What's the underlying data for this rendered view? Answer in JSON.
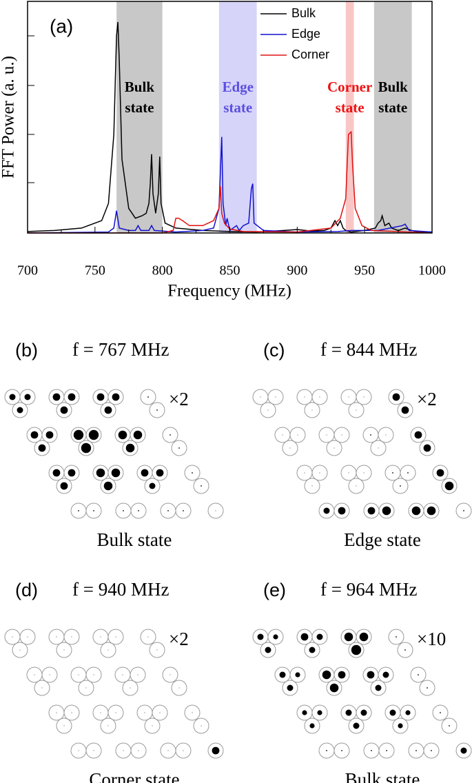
{
  "chart_data": {
    "type": "line",
    "panel_label": "(a)",
    "x_label": "Frequency (MHz)",
    "y_label": "FFT Power (a. u.)",
    "xlim": [
      700,
      1000
    ],
    "xticks": [
      700,
      750,
      800,
      850,
      900,
      950,
      1000
    ],
    "ylim": [
      0,
      4.7
    ],
    "bands": [
      {
        "range": [
          766,
          800
        ],
        "color": "#c8c8c8",
        "label_lines": [
          "Bulk",
          "state"
        ],
        "label_color": "#000000"
      },
      {
        "range": [
          842,
          870
        ],
        "color": "#d6d4f8",
        "label_lines": [
          "Edge",
          "state"
        ],
        "label_color": "#5b4fe0"
      },
      {
        "range": [
          936,
          942
        ],
        "color": "#f9c6c6",
        "label_lines": [
          "Corner",
          "state"
        ],
        "label_color": "#ee1111"
      },
      {
        "range": [
          957,
          985
        ],
        "color": "#c8c8c8",
        "label_lines": [
          "Bulk",
          "state"
        ],
        "label_color": "#000000"
      }
    ],
    "series": [
      {
        "name": "Bulk",
        "color": "#000000",
        "x": [
          700,
          720,
          740,
          755,
          760,
          764,
          766,
          767,
          768,
          770,
          775,
          780,
          785,
          788,
          790,
          791,
          792,
          793,
          795,
          797,
          798,
          799,
          802,
          810,
          830,
          850,
          870,
          890,
          900,
          910,
          920,
          925,
          928,
          930,
          932,
          934,
          936,
          940,
          950,
          958,
          960,
          962,
          963,
          965,
          968,
          970,
          975,
          980,
          985,
          990,
          1000
        ],
        "values": [
          0.03,
          0.05,
          0.1,
          0.25,
          0.6,
          2,
          4,
          4.28,
          3.5,
          1.5,
          0.5,
          0.3,
          0.35,
          0.4,
          0.6,
          1,
          1.6,
          0.8,
          0.4,
          0.8,
          1.55,
          0.6,
          0.2,
          0.1,
          0.05,
          0.03,
          0.02,
          0.05,
          0.07,
          0.04,
          0.05,
          0.1,
          0.25,
          0.15,
          0.25,
          0.1,
          0.05,
          0.02,
          0.05,
          0.1,
          0.2,
          0.25,
          0.35,
          0.15,
          0.2,
          0.1,
          0.05,
          0.1,
          0.05,
          0.02,
          0.02
        ]
      },
      {
        "name": "Edge",
        "color": "#1010d0",
        "x": [
          700,
          760,
          764,
          766,
          768,
          775,
          780,
          782,
          784,
          790,
          792,
          794,
          810,
          830,
          838,
          842,
          844,
          845,
          847,
          848,
          850,
          855,
          857,
          860,
          864,
          866,
          867,
          868,
          875,
          900,
          930,
          940,
          960,
          978,
          980,
          983,
          1000
        ],
        "values": [
          0,
          0.02,
          0.1,
          0.45,
          0.1,
          0.05,
          0.05,
          0.15,
          0.05,
          0.05,
          0.15,
          0.05,
          0.02,
          0.05,
          0.1,
          0.5,
          1.95,
          0.6,
          0.15,
          0.3,
          0.05,
          0.15,
          0.05,
          0.15,
          0.2,
          0.9,
          1,
          0.2,
          0.05,
          0.02,
          0.03,
          0.05,
          0.05,
          0.15,
          0.18,
          0.05,
          0.02
        ]
      },
      {
        "name": "Corner",
        "color": "#e01010",
        "x": [
          700,
          800,
          808,
          810,
          812,
          815,
          820,
          830,
          838,
          842,
          843,
          844,
          846,
          850,
          860,
          900,
          925,
          932,
          936,
          938,
          940,
          941,
          943,
          948,
          955,
          1000
        ],
        "values": [
          0,
          0,
          0.05,
          0.3,
          0.3,
          0.25,
          0.15,
          0.15,
          0.25,
          0.5,
          0.95,
          0.4,
          0.2,
          0.08,
          0.03,
          0.02,
          0.1,
          0.3,
          0.7,
          2,
          2.05,
          1.4,
          0.5,
          0.15,
          0.05,
          0
        ]
      }
    ]
  },
  "panels": [
    {
      "label": "(b)",
      "frequency": "f = 767 MHz",
      "scale": "×2",
      "caption": "Bulk state",
      "amplitudes": [
        [
          5,
          5,
          5,
          6,
          6,
          6,
          6,
          6,
          6,
          1,
          1
        ],
        [
          6,
          6,
          6,
          8,
          8,
          8,
          7,
          7,
          7,
          1,
          1
        ],
        [
          6,
          6,
          6,
          7,
          7,
          7,
          6,
          6,
          5,
          1,
          1
        ],
        [
          1,
          1,
          1,
          1,
          1,
          1,
          0.5
        ]
      ]
    },
    {
      "label": "(c)",
      "frequency": "f = 844 MHz",
      "scale": "×2",
      "caption": "Edge state",
      "amplitudes": [
        [
          0.5,
          0.5,
          0.5,
          0.5,
          0.5,
          0.5,
          0.5,
          0.5,
          0.5,
          6,
          6
        ],
        [
          0.5,
          0.5,
          0.5,
          0.5,
          0.5,
          0.5,
          1,
          0.5,
          0.5,
          6,
          6
        ],
        [
          0.5,
          0.5,
          0.5,
          0.5,
          0.5,
          0.5,
          1,
          1,
          1,
          6,
          7
        ],
        [
          5,
          6,
          6,
          7,
          7,
          7,
          1
        ]
      ]
    },
    {
      "label": "(d)",
      "frequency": "f = 940 MHz",
      "scale": "×2",
      "caption": "Corner state",
      "amplitudes": [
        [
          0.5,
          0.5,
          0.5,
          0.5,
          0.5,
          0.5,
          0.5,
          0.5,
          0.5,
          0.5,
          0.5
        ],
        [
          0.5,
          0.5,
          0.5,
          0.5,
          0.5,
          0.5,
          0.5,
          0.5,
          0.5,
          0.5,
          0.5
        ],
        [
          0.5,
          0.5,
          0.5,
          0.5,
          0.5,
          0.5,
          0.5,
          0.5,
          0.5,
          0.5,
          0.5
        ],
        [
          0.5,
          0.5,
          0.5,
          0.5,
          0.5,
          0.5,
          6
        ]
      ]
    },
    {
      "label": "(e)",
      "frequency": "f = 964 MHz",
      "scale": "×10",
      "caption": "Bulk state",
      "amplitudes": [
        [
          5,
          4,
          5,
          6,
          5,
          5,
          7,
          7,
          8,
          1,
          1
        ],
        [
          5,
          4,
          5,
          7,
          6,
          7,
          6,
          5,
          5,
          1,
          1
        ],
        [
          4,
          4,
          4,
          5,
          5,
          5,
          5,
          4,
          4,
          1,
          1
        ],
        [
          1,
          1,
          1,
          1,
          1,
          1,
          5
        ]
      ]
    }
  ]
}
